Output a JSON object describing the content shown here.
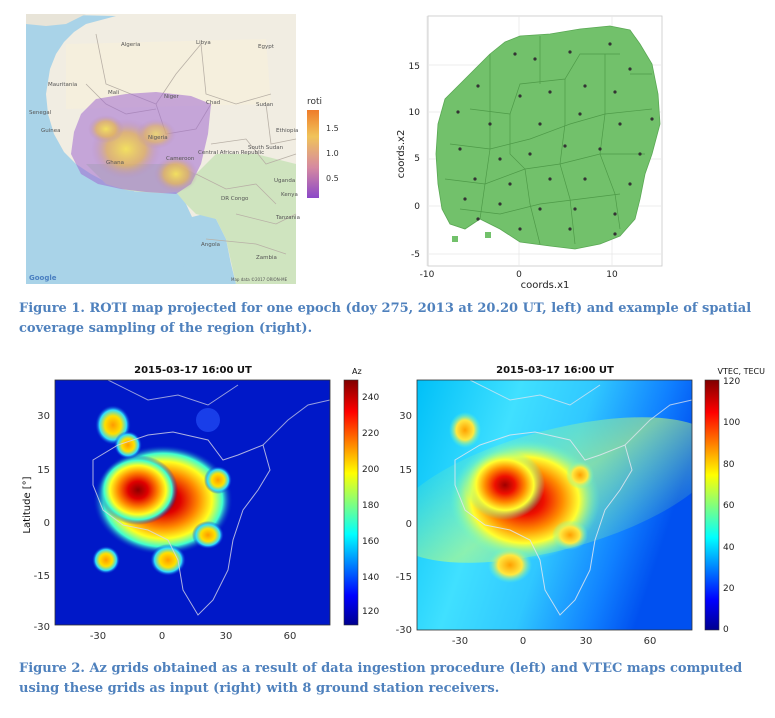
{
  "figure1": {
    "caption": "Figure 1. ROTI map projected for one epoch (doy 275, 2013 at 20.20 UT, left) and example of spatial coverage sampling of the region (right).",
    "map": {
      "legend_title": "roti",
      "legend_ticks": [
        "1.5",
        "1.0",
        "0.5"
      ],
      "countries": [
        "Algeria",
        "Libya",
        "Egypt",
        "Mauritania",
        "Mali",
        "Niger",
        "Chad",
        "Sudan",
        "Nigeria",
        "South Sudan",
        "Central African Republic",
        "Cameroon",
        "DR Congo",
        "Tanzania",
        "Angola",
        "Zambia",
        "Senegal",
        "Guinea",
        "Ghana",
        "Uganda",
        "Kenya",
        "Ethiopia"
      ],
      "attribution_left": "Google",
      "attribution_right": "Map data ©2017 ORION-ME"
    },
    "scatter": {
      "xlabel": "coords.x1",
      "ylabel": "coords.x2",
      "x_ticks": [
        "-10",
        "0",
        "10"
      ],
      "y_ticks": [
        "15",
        "10",
        "5",
        "0",
        "-5"
      ],
      "fill_color": "#72c16b"
    }
  },
  "figure2": {
    "caption": "Figure 2. Az grids obtained as a result of data ingestion procedure (left) and VTEC maps computed using these grids as input (right) with 8 ground station receivers.",
    "left": {
      "title": "2015-03-17 16:00 UT",
      "ylabel": "Latitude [°]",
      "x_ticks": [
        "-30",
        "0",
        "30",
        "60"
      ],
      "y_ticks": [
        "30",
        "15",
        "0",
        "-15",
        "-30"
      ],
      "colorbar_label": "Az",
      "colorbar_ticks": [
        "240",
        "220",
        "200",
        "180",
        "160",
        "140",
        "120"
      ]
    },
    "right": {
      "title": "2015-03-17 16:00 UT",
      "x_ticks": [
        "-30",
        "0",
        "30",
        "60"
      ],
      "y_ticks": [
        "30",
        "15",
        "0",
        "-15",
        "-30"
      ],
      "colorbar_label": "VTEC, TECU",
      "colorbar_ticks": [
        "120",
        "100",
        "80",
        "60",
        "40",
        "20",
        "0"
      ]
    }
  }
}
